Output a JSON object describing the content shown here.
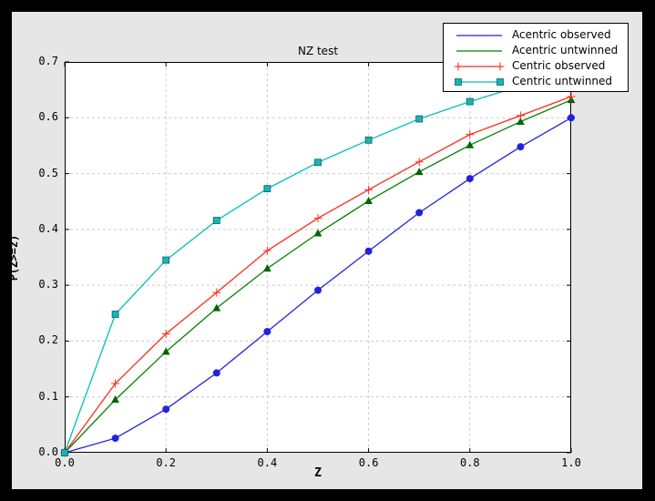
{
  "window": {
    "frame_color": "#000000",
    "figure_bg": "#e6e6e6",
    "plot_bg": "#ffffff",
    "grid_color": "#cccccc",
    "axis_color": "#000000"
  },
  "chart_data": {
    "type": "line",
    "title": "NZ test",
    "xlabel": "Z",
    "ylabel": "P(Z>=z)",
    "xlim": [
      0.0,
      1.0
    ],
    "ylim": [
      0.0,
      0.7
    ],
    "xticks": [
      0.0,
      0.2,
      0.4,
      0.6,
      0.8,
      1.0
    ],
    "yticks": [
      0.0,
      0.1,
      0.2,
      0.3,
      0.4,
      0.5,
      0.6,
      0.7
    ],
    "grid": true,
    "legend_position": "top-right",
    "x": [
      0.0,
      0.1,
      0.2,
      0.3,
      0.4,
      0.5,
      0.6,
      0.7,
      0.8,
      0.9,
      1.0
    ],
    "series": [
      {
        "name": "Acentric observed",
        "color": "#2222dd",
        "marker": "circle",
        "marker_color": "#2222dd",
        "legend_markers": false,
        "values": [
          0.0,
          0.026,
          0.078,
          0.143,
          0.217,
          0.291,
          0.361,
          0.43,
          0.491,
          0.548,
          0.6
        ]
      },
      {
        "name": "Acentric untwinned",
        "color": "#008000",
        "marker": "triangle",
        "marker_color": "#006400",
        "legend_markers": false,
        "values": [
          0.0,
          0.095,
          0.181,
          0.259,
          0.33,
          0.393,
          0.451,
          0.503,
          0.551,
          0.593,
          0.632
        ]
      },
      {
        "name": "Centric observed",
        "color": "#ff2a1a",
        "marker": "plus",
        "marker_color": "#ff2a1a",
        "legend_markers": true,
        "values": [
          0.0,
          0.124,
          0.213,
          0.287,
          0.362,
          0.42,
          0.471,
          0.521,
          0.57,
          0.604,
          0.638
        ]
      },
      {
        "name": "Centric untwinned",
        "color": "#00bfbf",
        "marker": "square",
        "marker_color": "#1cb2b2",
        "legend_markers": true,
        "values": [
          0.0,
          0.248,
          0.345,
          0.416,
          0.473,
          0.52,
          0.56,
          0.598,
          0.629,
          0.657,
          0.683
        ]
      }
    ]
  }
}
